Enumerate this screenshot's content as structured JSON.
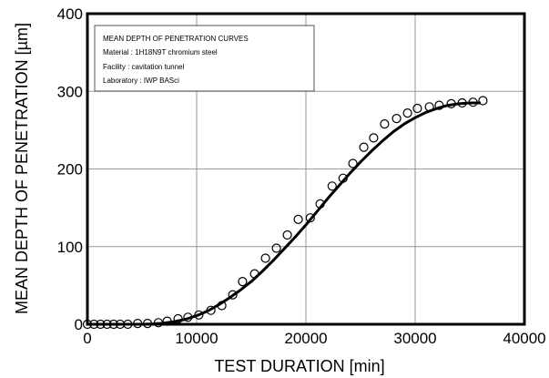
{
  "chart_data": {
    "type": "scatter",
    "xlabel": "TEST DURATION [min]",
    "ylabel": "MEAN DEPTH OF PENETRATION [µm]",
    "xlim": [
      0,
      40000
    ],
    "ylim": [
      0,
      400
    ],
    "x_ticks": [
      "0",
      "10000",
      "20000",
      "30000",
      "40000"
    ],
    "y_ticks": [
      "0",
      "100",
      "200",
      "300",
      "400"
    ],
    "grid": true,
    "info_box": {
      "title": "MEAN DEPTH OF PENETRATION CURVES",
      "material": "Material : 1H18N9T chromium steel",
      "facility": "Facility : cavitation tunnel",
      "laboratory": "Laboratory : IWP BASci"
    },
    "series": [
      {
        "marker": "open-circle",
        "x": [
          0,
          600,
          1200,
          1800,
          2400,
          3000,
          3700,
          4600,
          5500,
          6500,
          7300,
          8300,
          9200,
          10200,
          11300,
          12300,
          13300,
          14200,
          15300,
          16300,
          17300,
          18300,
          19300,
          20400,
          21300,
          22400,
          23400,
          24300,
          25300,
          26200,
          27200,
          28300,
          29300,
          30200,
          31300,
          32200,
          33300,
          34300,
          35300,
          36200
        ],
        "y": [
          0,
          0,
          0,
          0,
          0,
          0,
          0,
          1,
          1,
          2,
          4,
          7,
          9,
          12,
          18,
          24,
          38,
          55,
          65,
          85,
          98,
          115,
          135,
          137,
          155,
          178,
          188,
          207,
          228,
          240,
          258,
          265,
          272,
          278,
          280,
          282,
          284,
          285,
          286,
          288
        ]
      },
      {
        "style": "solid-thick",
        "x": [
          0,
          2000,
          4000,
          5000,
          6000,
          7000,
          8000,
          9000,
          10000,
          11000,
          12000,
          13000,
          14000,
          15000,
          16000,
          17000,
          18000,
          19000,
          20000,
          21000,
          22000,
          23000,
          24000,
          25000,
          26000,
          27000,
          28000,
          29000,
          30000,
          31000,
          32000,
          33000,
          34000,
          35000,
          36000
        ],
        "y": [
          0,
          0,
          0,
          0,
          0.5,
          1.5,
          3.5,
          6.5,
          11,
          17,
          25,
          34,
          44,
          55,
          68,
          82,
          97,
          112,
          128,
          145,
          162,
          178,
          194,
          209,
          223,
          236,
          248,
          258,
          266,
          273,
          278,
          282,
          284,
          285,
          285
        ]
      }
    ]
  }
}
